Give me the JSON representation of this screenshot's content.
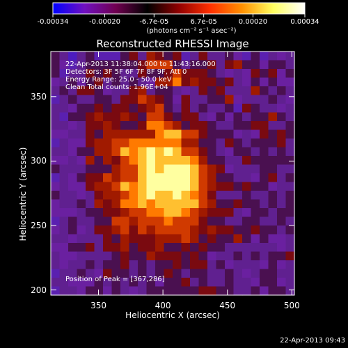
{
  "colorbar": {
    "tick_labels": [
      "-0.00034",
      "-0.00020",
      "-6.7e-05",
      "6.7e-05",
      "0.00020",
      "0.00034"
    ],
    "tick_values": [
      -0.00034,
      -0.0002,
      -6.7e-05,
      6.7e-05,
      0.0002,
      0.00034
    ],
    "range": [
      -0.00034,
      0.00034
    ],
    "unit_label": "(photons cm⁻² s⁻¹ asec⁻²)",
    "colors": [
      "#0000ff",
      "#7010c0",
      "#700050",
      "#000000",
      "#900000",
      "#ff3000",
      "#ff9000",
      "#ffff60",
      "#ffffff"
    ]
  },
  "annotations": {
    "time_range": "22-Apr-2013 11:38:04.000 to 11:43:16.000",
    "detectors": "Detectors: 3F 5F 6F 7F 8F 9F, Att 0",
    "energy": "Energy Range: 25.0 - 50.0 keV",
    "clean": "Clean     Total counts: 1.96E+04",
    "peak": "Position of Peak = [367,286]"
  },
  "timestamp": "22-Apr-2013 09:43",
  "chart_data": {
    "type": "heatmap",
    "title": "Reconstructed RHESSI Image",
    "xlabel": "Heliocentric X (arcsec)",
    "ylabel": "Heliocentric Y (arcsec)",
    "xlim": [
      313,
      502
    ],
    "ylim": [
      196,
      385
    ],
    "xticks": [
      350,
      400,
      450,
      500
    ],
    "xtick_labels": [
      "350",
      "400",
      "450",
      "500"
    ],
    "yticks": [
      200,
      250,
      300,
      350
    ],
    "ytick_labels": [
      "200",
      "250",
      "300",
      "350"
    ],
    "peak_position": [
      367,
      286
    ],
    "grid_cols": 28,
    "grid_rows": 28,
    "intensity_rows": [
      [
        6,
        5,
        2,
        5,
        6,
        3,
        3,
        3,
        6,
        7,
        5,
        8,
        7,
        6,
        7,
        3,
        5,
        7,
        5,
        5,
        6,
        4,
        3,
        6,
        3,
        5,
        4,
        5
      ],
      [
        6,
        4,
        3,
        5,
        6,
        6,
        6,
        6,
        6,
        6,
        7,
        9,
        9,
        9,
        6,
        5,
        6,
        6,
        7,
        5,
        7,
        8,
        6,
        6,
        4,
        6,
        6,
        5
      ],
      [
        6,
        3,
        5,
        5,
        7,
        6,
        7,
        6,
        5,
        5,
        7,
        6,
        6,
        7,
        9,
        7,
        7,
        7,
        6,
        5,
        4,
        5,
        4,
        7,
        6,
        7,
        4,
        6
      ],
      [
        4,
        5,
        6,
        4,
        6,
        7,
        5,
        6,
        5,
        6,
        5,
        4,
        8,
        8,
        10,
        7,
        8,
        7,
        7,
        6,
        7,
        5,
        4,
        6,
        4,
        6,
        4,
        4
      ],
      [
        5,
        6,
        5,
        7,
        7,
        6,
        4,
        5,
        5,
        7,
        8,
        5,
        6,
        6,
        5,
        4,
        5,
        7,
        6,
        7,
        5,
        5,
        5,
        8,
        6,
        5,
        6,
        5
      ],
      [
        3,
        5,
        6,
        5,
        5,
        6,
        6,
        5,
        7,
        7,
        9,
        8,
        7,
        6,
        4,
        7,
        5,
        5,
        6,
        6,
        8,
        4,
        5,
        5,
        5,
        6,
        5,
        4
      ],
      [
        5,
        5,
        4,
        6,
        6,
        7,
        6,
        7,
        7,
        6,
        7,
        8,
        9,
        6,
        5,
        7,
        5,
        6,
        5,
        5,
        6,
        3,
        7,
        6,
        5,
        5,
        4,
        5
      ],
      [
        5,
        3,
        6,
        6,
        7,
        8,
        7,
        7,
        8,
        7,
        6,
        9,
        9,
        7,
        6,
        7,
        7,
        5,
        4,
        6,
        4,
        6,
        5,
        6,
        6,
        8,
        6,
        5
      ],
      [
        5,
        5,
        4,
        5,
        7,
        7,
        8,
        7,
        6,
        6,
        7,
        10,
        10,
        9,
        8,
        6,
        7,
        7,
        6,
        5,
        5,
        6,
        6,
        7,
        7,
        5,
        5,
        6
      ],
      [
        4,
        4,
        5,
        5,
        7,
        6,
        8,
        8,
        8,
        8,
        8,
        8,
        10,
        11,
        11,
        9,
        9,
        7,
        6,
        6,
        6,
        4,
        5,
        4,
        7,
        6,
        7,
        6
      ],
      [
        3,
        5,
        4,
        4,
        7,
        8,
        8,
        9,
        9,
        10,
        10,
        10,
        10,
        10,
        10,
        8,
        8,
        6,
        6,
        5,
        7,
        6,
        5,
        6,
        6,
        6,
        7,
        5
      ],
      [
        5,
        5,
        4,
        6,
        6,
        8,
        8,
        9,
        11,
        10,
        11,
        12,
        11,
        12,
        11,
        9,
        9,
        7,
        6,
        5,
        4,
        6,
        6,
        5,
        6,
        5,
        6,
        5
      ],
      [
        4,
        4,
        5,
        4,
        8,
        6,
        8,
        7,
        9,
        10,
        11,
        12,
        11,
        11,
        11,
        11,
        10,
        8,
        6,
        6,
        5,
        5,
        7,
        6,
        6,
        6,
        6,
        6
      ],
      [
        6,
        5,
        5,
        5,
        6,
        6,
        6,
        8,
        9,
        9,
        11,
        12,
        11,
        12,
        12,
        12,
        11,
        9,
        8,
        7,
        4,
        5,
        5,
        5,
        6,
        6,
        5,
        5
      ],
      [
        3,
        5,
        4,
        6,
        7,
        7,
        9,
        8,
        9,
        9,
        11,
        12,
        12,
        12,
        12,
        12,
        11,
        9,
        8,
        6,
        6,
        5,
        5,
        4,
        6,
        7,
        5,
        6
      ],
      [
        4,
        5,
        4,
        4,
        7,
        8,
        8,
        9,
        11,
        10,
        11,
        12,
        12,
        12,
        12,
        12,
        11,
        9,
        8,
        7,
        7,
        6,
        7,
        6,
        6,
        4,
        5,
        5
      ],
      [
        6,
        5,
        5,
        4,
        5,
        7,
        8,
        8,
        9,
        10,
        11,
        12,
        11,
        11,
        12,
        11,
        10,
        9,
        7,
        5,
        5,
        5,
        6,
        5,
        5,
        6,
        5,
        6
      ],
      [
        4,
        5,
        5,
        6,
        5,
        8,
        7,
        8,
        10,
        10,
        11,
        10,
        11,
        11,
        11,
        11,
        11,
        9,
        8,
        6,
        6,
        7,
        6,
        6,
        5,
        6,
        5,
        6
      ],
      [
        4,
        4,
        4,
        5,
        6,
        6,
        7,
        7,
        8,
        9,
        9,
        10,
        10,
        11,
        11,
        10,
        9,
        8,
        7,
        7,
        7,
        5,
        4,
        6,
        6,
        5,
        6,
        6
      ],
      [
        3,
        5,
        6,
        5,
        5,
        6,
        6,
        9,
        9,
        8,
        9,
        9,
        9,
        10,
        9,
        9,
        9,
        7,
        6,
        6,
        5,
        5,
        6,
        6,
        5,
        5,
        6,
        5
      ],
      [
        4,
        5,
        6,
        4,
        5,
        7,
        7,
        8,
        9,
        7,
        9,
        8,
        9,
        9,
        9,
        9,
        8,
        7,
        8,
        7,
        7,
        6,
        6,
        7,
        6,
        6,
        5,
        6
      ],
      [
        5,
        5,
        4,
        5,
        5,
        5,
        7,
        6,
        8,
        7,
        7,
        7,
        8,
        8,
        8,
        9,
        8,
        6,
        7,
        6,
        6,
        8,
        6,
        4,
        6,
        4,
        4,
        5
      ],
      [
        4,
        4,
        6,
        6,
        7,
        5,
        7,
        7,
        8,
        6,
        7,
        7,
        8,
        6,
        6,
        7,
        6,
        7,
        6,
        6,
        5,
        5,
        5,
        5,
        5,
        5,
        4,
        5
      ],
      [
        5,
        4,
        4,
        5,
        5,
        5,
        5,
        6,
        7,
        6,
        6,
        8,
        7,
        7,
        7,
        6,
        7,
        6,
        4,
        5,
        5,
        6,
        5,
        6,
        5,
        6,
        6,
        7
      ],
      [
        5,
        4,
        5,
        5,
        6,
        5,
        6,
        6,
        7,
        5,
        6,
        5,
        6,
        6,
        7,
        6,
        7,
        7,
        5,
        6,
        4,
        5,
        5,
        5,
        4,
        6,
        4,
        5
      ],
      [
        3,
        5,
        5,
        6,
        5,
        4,
        7,
        6,
        6,
        5,
        6,
        5,
        6,
        7,
        6,
        5,
        6,
        6,
        5,
        5,
        6,
        5,
        4,
        5,
        6,
        6,
        5,
        5
      ],
      [
        5,
        5,
        4,
        4,
        4,
        6,
        5,
        6,
        5,
        6,
        5,
        6,
        4,
        6,
        6,
        7,
        5,
        6,
        5,
        5,
        6,
        5,
        5,
        4,
        6,
        6,
        4,
        5
      ],
      [
        3,
        5,
        5,
        4,
        6,
        6,
        4,
        6,
        5,
        4,
        5,
        6,
        6,
        6,
        6,
        6,
        6,
        7,
        7,
        6,
        6,
        5,
        5,
        6,
        4,
        6,
        6,
        5
      ]
    ]
  }
}
